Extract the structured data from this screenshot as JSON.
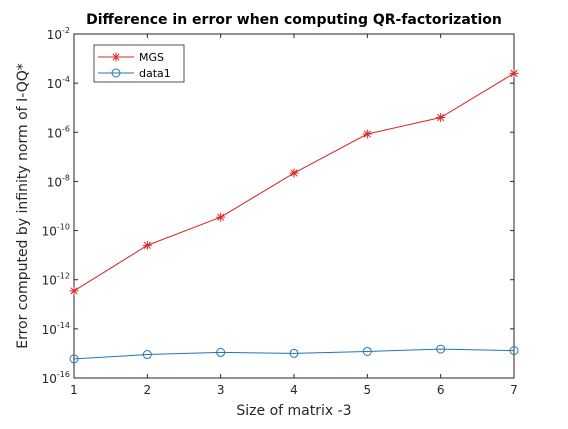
{
  "chart_data": {
    "type": "line",
    "title": "Difference in error when computing QR-factorization",
    "xlabel": "Size of matrix -3",
    "ylabel": "Error computed by infinity norm of I-QQ*",
    "x": [
      1,
      2,
      3,
      4,
      5,
      6,
      7
    ],
    "xlim": [
      1,
      7
    ],
    "ylim": [
      1e-16,
      0.01
    ],
    "yscale": "log",
    "x_tick_labels": [
      "1",
      "2",
      "3",
      "4",
      "5",
      "6",
      "7"
    ],
    "y_tick_labels": [
      {
        "base": "10",
        "exp": "-16"
      },
      {
        "base": "10",
        "exp": "-14"
      },
      {
        "base": "10",
        "exp": "-12"
      },
      {
        "base": "10",
        "exp": "-10"
      },
      {
        "base": "10",
        "exp": "-8"
      },
      {
        "base": "10",
        "exp": "-6"
      },
      {
        "base": "10",
        "exp": "-4"
      },
      {
        "base": "10",
        "exp": "-2"
      }
    ],
    "grid": false,
    "legend_position": "top-left",
    "series": [
      {
        "name": "MGS",
        "color": "#d62728",
        "marker": "star",
        "values": [
          3.5e-13,
          2.5e-11,
          3.5e-10,
          2.2e-08,
          8.5e-07,
          4e-06,
          0.00025
        ]
      },
      {
        "name": "data1",
        "color": "#1f77b4",
        "marker": "circle",
        "values": [
          6e-16,
          9e-16,
          1.1e-15,
          1e-15,
          1.2e-15,
          1.5e-15,
          1.3e-15
        ]
      }
    ]
  }
}
